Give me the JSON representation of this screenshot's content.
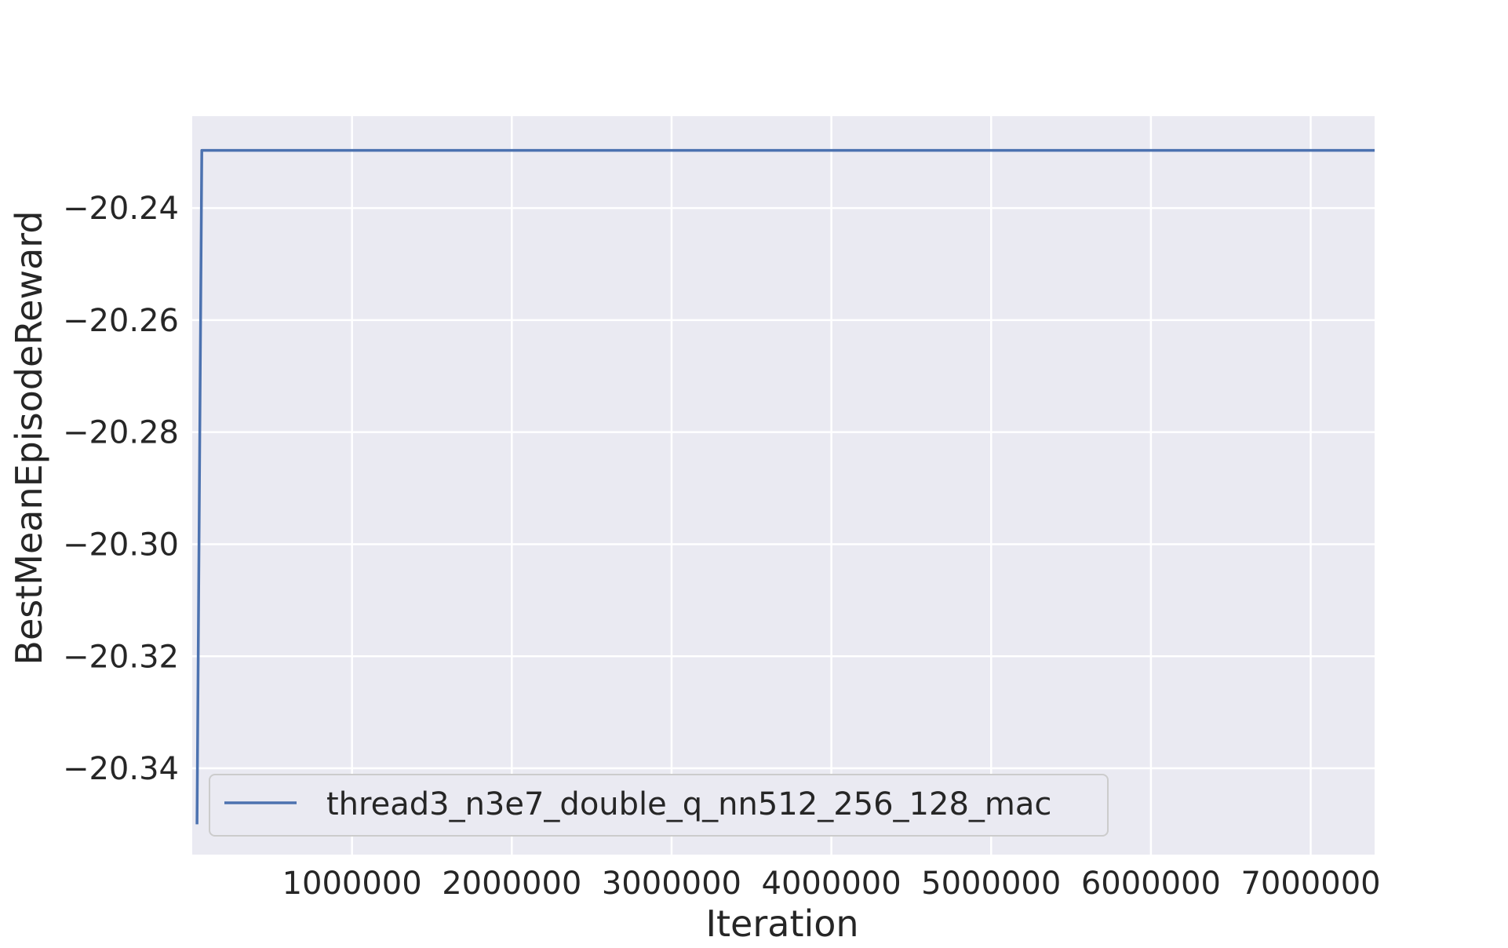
{
  "chart_data": {
    "type": "line",
    "title": "",
    "xlabel": "Iteration",
    "ylabel": "BestMeanEpisodeReward",
    "xlim": [
      0,
      7400000
    ],
    "ylim": [
      -20.3554,
      -20.2236
    ],
    "xticks": [
      1000000,
      2000000,
      3000000,
      4000000,
      5000000,
      6000000,
      7000000
    ],
    "xtick_labels": [
      "1000000",
      "2000000",
      "3000000",
      "4000000",
      "5000000",
      "6000000",
      "7000000"
    ],
    "yticks": [
      -20.24,
      -20.26,
      -20.28,
      -20.3,
      -20.32,
      -20.34
    ],
    "ytick_labels": [
      "−20.24",
      "−20.26",
      "−20.28",
      "−20.30",
      "−20.32",
      "−20.34"
    ],
    "grid": true,
    "legend_position": "lower-left",
    "background_color": "#eaeaf2",
    "grid_color": "#ffffff",
    "series": [
      {
        "name": "thread3_n3e7_double_q_nn512_256_128_mac",
        "color": "#4c72b0",
        "x": [
          30000,
          60000,
          7400000
        ],
        "y": [
          -20.35,
          -20.2297,
          -20.2297
        ]
      }
    ]
  }
}
